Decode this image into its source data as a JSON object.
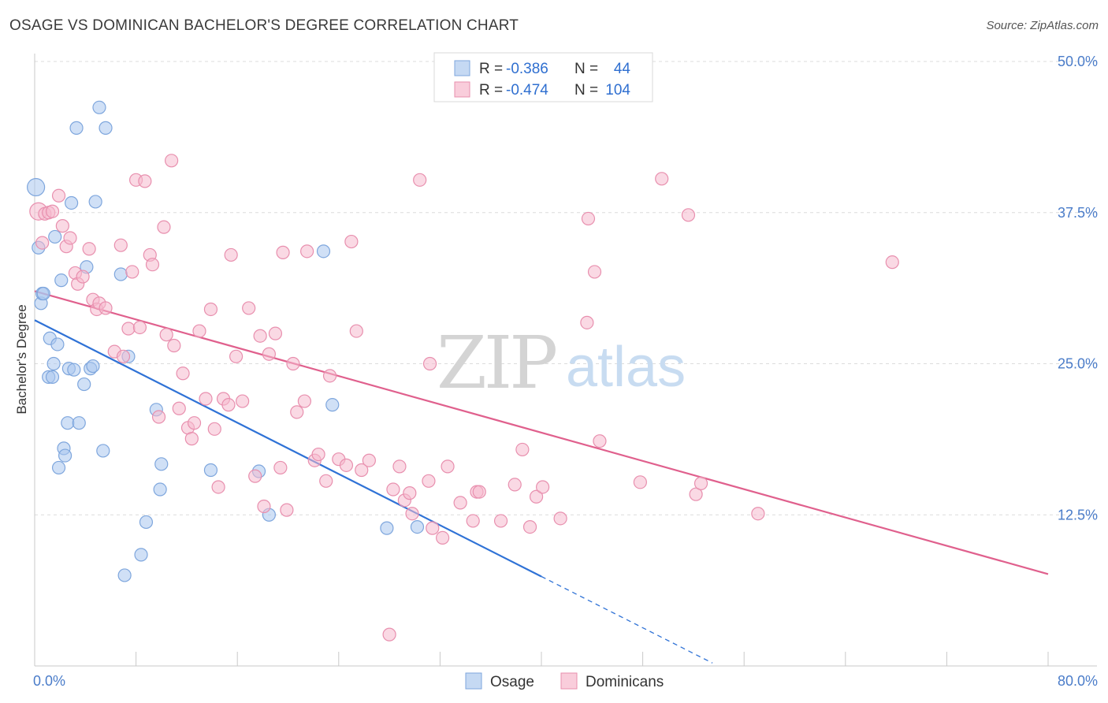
{
  "title": "OSAGE VS DOMINICAN BACHELOR'S DEGREE CORRELATION CHART",
  "source": "Source: ZipAtlas.com",
  "watermark": {
    "zip": "ZIP",
    "atlas": "atlas"
  },
  "colors": {
    "osage": "#2f72d6",
    "dominicans": "#e0608d",
    "osage_fill": "#a9c7ef",
    "dominicans_fill": "#f6b9cd",
    "axis_label": "#4a7cc9"
  },
  "legend_top": [
    {
      "r_label": "R =",
      "r_value": "-0.386",
      "n_label": "N =",
      "n_value": "44"
    },
    {
      "r_label": "R =",
      "r_value": "-0.474",
      "n_label": "N =",
      "n_value": "104"
    }
  ],
  "chart_data": {
    "type": "scatter",
    "title": "OSAGE VS DOMINICAN BACHELOR'S DEGREE CORRELATION CHART",
    "xlabel": "",
    "ylabel": "Bachelor's Degree",
    "xlim": [
      0,
      80
    ],
    "ylim": [
      0,
      50
    ],
    "x_tick_labels": [
      "0.0%",
      "80.0%"
    ],
    "y_ticks": [
      12.5,
      25.0,
      37.5,
      50.0
    ],
    "y_tick_labels": [
      "12.5%",
      "25.0%",
      "37.5%",
      "50.0%"
    ],
    "grid": true,
    "legend_position": "bottom",
    "series": [
      {
        "name": "Osage",
        "color": "#2f72d6",
        "trend": {
          "x0": 0,
          "y0": 28.6,
          "x1": 40,
          "y1": 7.4,
          "dashed_to_x": 53.5
        },
        "points": [
          [
            0.1,
            39.6
          ],
          [
            0.3,
            34.6
          ],
          [
            0.5,
            30.0
          ],
          [
            0.6,
            30.8
          ],
          [
            0.7,
            30.8
          ],
          [
            1.1,
            23.9
          ],
          [
            1.2,
            27.1
          ],
          [
            1.4,
            23.9
          ],
          [
            1.5,
            25.0
          ],
          [
            1.6,
            35.5
          ],
          [
            1.8,
            26.6
          ],
          [
            1.9,
            16.4
          ],
          [
            2.1,
            31.9
          ],
          [
            2.3,
            18.0
          ],
          [
            2.4,
            17.4
          ],
          [
            2.6,
            20.1
          ],
          [
            2.7,
            24.6
          ],
          [
            2.9,
            38.3
          ],
          [
            3.1,
            24.5
          ],
          [
            3.3,
            44.5
          ],
          [
            3.5,
            20.1
          ],
          [
            3.9,
            23.3
          ],
          [
            4.1,
            33.0
          ],
          [
            4.4,
            24.6
          ],
          [
            4.6,
            24.8
          ],
          [
            4.8,
            38.4
          ],
          [
            5.1,
            46.2
          ],
          [
            5.4,
            17.8
          ],
          [
            5.6,
            44.5
          ],
          [
            6.8,
            32.4
          ],
          [
            7.1,
            7.5
          ],
          [
            7.4,
            25.6
          ],
          [
            8.4,
            9.2
          ],
          [
            8.8,
            11.9
          ],
          [
            9.6,
            21.2
          ],
          [
            9.9,
            14.6
          ],
          [
            10.0,
            16.7
          ],
          [
            13.9,
            16.2
          ],
          [
            17.7,
            16.1
          ],
          [
            18.5,
            12.5
          ],
          [
            22.8,
            34.3
          ],
          [
            23.5,
            21.6
          ],
          [
            30.2,
            11.5
          ],
          [
            27.8,
            11.4
          ]
        ]
      },
      {
        "name": "Dominicans",
        "color": "#e0608d",
        "trend": {
          "x0": 0,
          "y0": 31.0,
          "x1": 80,
          "y1": 7.6
        },
        "points": [
          [
            0.3,
            37.6
          ],
          [
            0.8,
            37.4
          ],
          [
            1.1,
            37.5
          ],
          [
            1.4,
            37.6
          ],
          [
            1.9,
            38.9
          ],
          [
            2.2,
            36.4
          ],
          [
            2.5,
            34.7
          ],
          [
            2.8,
            35.4
          ],
          [
            3.2,
            32.5
          ],
          [
            3.4,
            31.6
          ],
          [
            3.8,
            32.2
          ],
          [
            4.3,
            34.5
          ],
          [
            4.6,
            30.3
          ],
          [
            4.9,
            29.5
          ],
          [
            5.1,
            30.0
          ],
          [
            5.6,
            29.6
          ],
          [
            6.3,
            26.0
          ],
          [
            6.8,
            34.8
          ],
          [
            7.0,
            25.6
          ],
          [
            7.4,
            27.9
          ],
          [
            7.7,
            32.6
          ],
          [
            8.0,
            40.2
          ],
          [
            8.3,
            28.0
          ],
          [
            8.7,
            40.1
          ],
          [
            9.1,
            34.0
          ],
          [
            9.3,
            33.2
          ],
          [
            9.8,
            20.6
          ],
          [
            10.2,
            36.3
          ],
          [
            10.4,
            27.4
          ],
          [
            10.8,
            41.8
          ],
          [
            11.0,
            26.5
          ],
          [
            11.4,
            21.3
          ],
          [
            11.7,
            24.2
          ],
          [
            12.1,
            19.7
          ],
          [
            12.4,
            18.8
          ],
          [
            12.6,
            20.1
          ],
          [
            13.0,
            27.7
          ],
          [
            13.5,
            22.1
          ],
          [
            13.9,
            29.5
          ],
          [
            14.2,
            19.6
          ],
          [
            14.5,
            14.8
          ],
          [
            14.9,
            22.1
          ],
          [
            15.3,
            21.6
          ],
          [
            15.5,
            34.0
          ],
          [
            15.9,
            25.6
          ],
          [
            16.4,
            21.9
          ],
          [
            16.9,
            29.6
          ],
          [
            17.4,
            15.7
          ],
          [
            17.8,
            27.3
          ],
          [
            18.1,
            13.2
          ],
          [
            18.5,
            25.8
          ],
          [
            19.0,
            27.5
          ],
          [
            19.4,
            16.4
          ],
          [
            19.6,
            34.2
          ],
          [
            19.9,
            12.9
          ],
          [
            20.4,
            25.0
          ],
          [
            20.7,
            21.0
          ],
          [
            21.3,
            21.9
          ],
          [
            21.5,
            34.3
          ],
          [
            22.1,
            17.0
          ],
          [
            22.4,
            17.5
          ],
          [
            23.0,
            15.3
          ],
          [
            23.3,
            24.0
          ],
          [
            24.0,
            17.1
          ],
          [
            24.6,
            16.6
          ],
          [
            25.0,
            35.1
          ],
          [
            25.4,
            27.7
          ],
          [
            25.8,
            16.2
          ],
          [
            26.4,
            17.0
          ],
          [
            28.0,
            2.6
          ],
          [
            28.3,
            14.6
          ],
          [
            28.8,
            16.5
          ],
          [
            29.2,
            13.7
          ],
          [
            29.6,
            14.3
          ],
          [
            29.8,
            12.6
          ],
          [
            30.4,
            40.2
          ],
          [
            31.1,
            15.3
          ],
          [
            31.2,
            25.0
          ],
          [
            31.4,
            11.4
          ],
          [
            32.2,
            10.6
          ],
          [
            32.6,
            16.5
          ],
          [
            33.6,
            13.5
          ],
          [
            34.6,
            12.0
          ],
          [
            34.9,
            14.4
          ],
          [
            35.1,
            14.4
          ],
          [
            36.8,
            12.0
          ],
          [
            37.9,
            15.0
          ],
          [
            38.5,
            17.9
          ],
          [
            39.1,
            11.5
          ],
          [
            39.6,
            14.0
          ],
          [
            40.1,
            14.8
          ],
          [
            41.5,
            12.2
          ],
          [
            43.6,
            28.4
          ],
          [
            43.7,
            37.0
          ],
          [
            44.2,
            32.6
          ],
          [
            44.6,
            18.6
          ],
          [
            47.8,
            15.2
          ],
          [
            49.5,
            40.3
          ],
          [
            51.6,
            37.3
          ],
          [
            52.2,
            14.2
          ],
          [
            52.6,
            15.1
          ],
          [
            57.1,
            12.6
          ],
          [
            67.7,
            33.4
          ],
          [
            0.6,
            35.0
          ]
        ]
      }
    ]
  },
  "legend_bottom": [
    {
      "label": "Osage"
    },
    {
      "label": "Dominicans"
    }
  ]
}
